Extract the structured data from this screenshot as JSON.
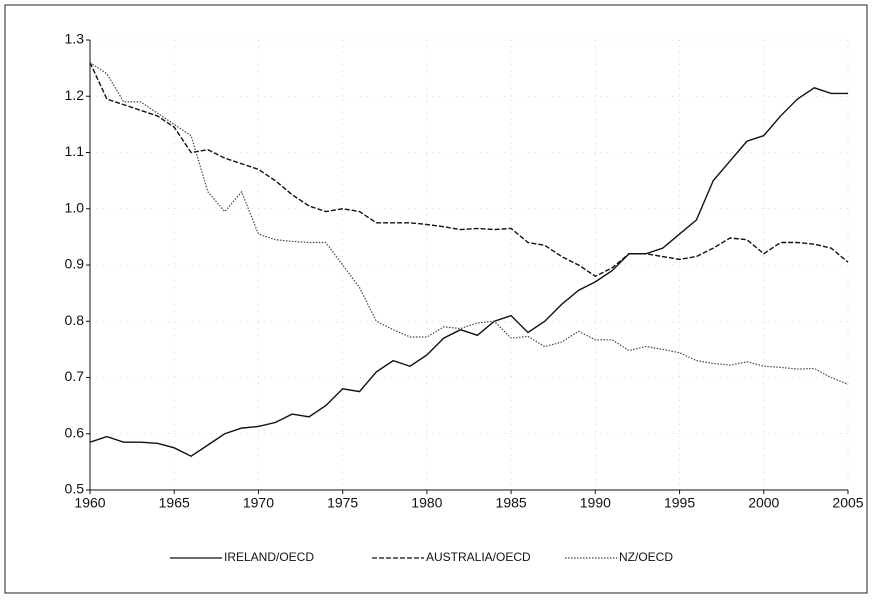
{
  "chart_data": {
    "type": "line",
    "x": [
      1960,
      1961,
      1962,
      1963,
      1964,
      1965,
      1966,
      1967,
      1968,
      1969,
      1970,
      1971,
      1972,
      1973,
      1974,
      1975,
      1976,
      1977,
      1978,
      1979,
      1980,
      1981,
      1982,
      1983,
      1984,
      1985,
      1986,
      1987,
      1988,
      1989,
      1990,
      1991,
      1992,
      1993,
      1994,
      1995,
      1996,
      1997,
      1998,
      1999,
      2000,
      2001,
      2002,
      2003,
      2004,
      2005
    ],
    "series": [
      {
        "name": "IRELAND/OECD",
        "color": "#111111",
        "dash": "solid",
        "values": [
          0.585,
          0.595,
          0.585,
          0.585,
          0.583,
          0.575,
          0.56,
          0.58,
          0.6,
          0.61,
          0.613,
          0.62,
          0.635,
          0.63,
          0.65,
          0.68,
          0.675,
          0.71,
          0.73,
          0.72,
          0.74,
          0.77,
          0.785,
          0.775,
          0.8,
          0.81,
          0.78,
          0.8,
          0.83,
          0.855,
          0.87,
          0.89,
          0.92,
          0.92,
          0.93,
          0.955,
          0.98,
          1.05,
          1.085,
          1.12,
          1.13,
          1.165,
          1.195,
          1.215,
          1.205,
          1.205
        ]
      },
      {
        "name": "AUSTRALIA/OECD",
        "color": "#111111",
        "dash": "dashed",
        "values": [
          1.26,
          1.195,
          1.185,
          1.175,
          1.165,
          1.145,
          1.1,
          1.105,
          1.09,
          1.08,
          1.07,
          1.05,
          1.025,
          1.005,
          0.995,
          1.0,
          0.995,
          0.975,
          0.975,
          0.975,
          0.972,
          0.968,
          0.963,
          0.965,
          0.963,
          0.965,
          0.94,
          0.935,
          0.915,
          0.9,
          0.88,
          0.895,
          0.92,
          0.92,
          0.915,
          0.91,
          0.915,
          0.93,
          0.948,
          0.945,
          0.92,
          0.94,
          0.94,
          0.937,
          0.93,
          0.905
        ]
      },
      {
        "name": "NZ/OECD",
        "color": "#444444",
        "dash": "dotted",
        "values": [
          1.26,
          1.24,
          1.19,
          1.19,
          1.17,
          1.15,
          1.13,
          1.03,
          0.995,
          1.03,
          0.955,
          0.945,
          0.942,
          0.94,
          0.94,
          0.9,
          0.86,
          0.8,
          0.785,
          0.772,
          0.772,
          0.79,
          0.787,
          0.797,
          0.8,
          0.77,
          0.773,
          0.755,
          0.763,
          0.782,
          0.767,
          0.767,
          0.748,
          0.755,
          0.75,
          0.744,
          0.73,
          0.725,
          0.722,
          0.728,
          0.72,
          0.718,
          0.715,
          0.716,
          0.7,
          0.688
        ]
      }
    ],
    "xlim": [
      1960,
      2005
    ],
    "xticks": [
      1960,
      1965,
      1970,
      1975,
      1980,
      1985,
      1990,
      1995,
      2000,
      2005
    ],
    "ylim": [
      0.5,
      1.3
    ],
    "yticks": [
      0.5,
      0.6,
      0.7,
      0.8,
      0.9,
      {
        "value": 1,
        "label": "1.0"
      },
      1.1,
      1.2,
      1.3
    ],
    "grid": true,
    "legend": "bottom"
  }
}
